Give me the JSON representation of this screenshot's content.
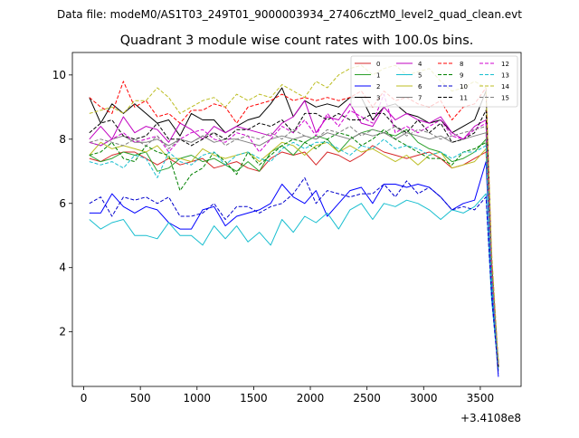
{
  "figure": {
    "suptitle": "Data file: modeM0/AS1T03_249T01_9000003934_27406cztM0_level2_quad_clean.evt"
  },
  "chart_data": {
    "type": "line",
    "title": "Quadrant 3 module wise count rates with 100.0s bins.",
    "xlabel": "",
    "ylabel": "",
    "x_offset_label": "+3.4108e8",
    "xlim": [
      -100,
      3860
    ],
    "ylim": [
      0.3,
      10.7
    ],
    "xticks": [
      0,
      500,
      1000,
      1500,
      2000,
      2500,
      3000,
      3500
    ],
    "yticks": [
      2,
      4,
      6,
      8,
      10
    ],
    "grid": false,
    "legend_position": "top-right",
    "x": [
      50,
      150,
      250,
      350,
      450,
      550,
      650,
      750,
      850,
      950,
      1050,
      1150,
      1250,
      1350,
      1450,
      1550,
      1650,
      1750,
      1850,
      1950,
      2050,
      2150,
      2250,
      2350,
      2450,
      2550,
      2650,
      2750,
      2850,
      2950,
      3050,
      3150,
      3250,
      3350,
      3450,
      3550,
      3600,
      3660
    ],
    "series": [
      {
        "name": "0",
        "color": "#d62728",
        "dash": "solid",
        "values": [
          7.4,
          7.3,
          7.5,
          7.6,
          7.6,
          7.4,
          7.2,
          7.4,
          7.2,
          7.3,
          7.4,
          7.1,
          7.2,
          7.3,
          7.1,
          7.0,
          7.4,
          7.6,
          7.5,
          7.6,
          7.2,
          7.6,
          7.5,
          7.3,
          7.5,
          7.8,
          7.6,
          7.5,
          7.4,
          7.5,
          7.6,
          7.4,
          7.1,
          7.2,
          7.4,
          7.6,
          3.5,
          1.0
        ]
      },
      {
        "name": "1",
        "color": "#2ca02c",
        "dash": "solid",
        "values": [
          7.5,
          7.3,
          7.4,
          7.6,
          7.5,
          7.6,
          7.0,
          7.1,
          7.4,
          7.5,
          7.3,
          7.4,
          7.2,
          7.0,
          7.3,
          7.0,
          7.6,
          7.8,
          7.5,
          7.9,
          8.1,
          8.0,
          7.6,
          8.0,
          8.2,
          8.3,
          8.2,
          8.1,
          8.3,
          7.9,
          7.7,
          7.6,
          7.3,
          7.4,
          7.6,
          8.0,
          3.6,
          1.1
        ]
      },
      {
        "name": "2",
        "color": "#0000ff",
        "dash": "solid",
        "values": [
          5.7,
          5.7,
          6.3,
          5.9,
          5.7,
          5.9,
          5.8,
          5.4,
          5.2,
          5.2,
          5.8,
          5.9,
          5.3,
          5.6,
          5.7,
          5.8,
          6.0,
          6.6,
          6.2,
          6.0,
          6.4,
          5.6,
          6.0,
          6.4,
          6.5,
          6.0,
          6.6,
          6.6,
          6.5,
          6.6,
          6.5,
          6.2,
          5.8,
          6.0,
          6.1,
          7.3,
          3.4,
          0.6
        ]
      },
      {
        "name": "3",
        "color": "#000000",
        "dash": "solid",
        "values": [
          9.3,
          8.5,
          9.1,
          8.8,
          9.1,
          8.8,
          8.5,
          8.6,
          8.1,
          8.8,
          8.6,
          8.6,
          8.2,
          8.4,
          8.6,
          8.7,
          9.1,
          9.6,
          8.7,
          9.2,
          9.0,
          9.1,
          9.0,
          9.3,
          9.3,
          8.6,
          9.0,
          9.1,
          8.8,
          8.7,
          8.5,
          8.6,
          8.2,
          8.4,
          8.6,
          9.5,
          4.2,
          0.9
        ]
      },
      {
        "name": "4",
        "color": "#c000c0",
        "dash": "solid",
        "values": [
          8.0,
          8.4,
          8.0,
          8.7,
          8.2,
          8.4,
          8.3,
          7.9,
          8.5,
          8.3,
          8.0,
          8.4,
          8.2,
          8.4,
          8.3,
          8.2,
          8.1,
          8.5,
          8.7,
          9.2,
          8.2,
          8.7,
          8.6,
          9.1,
          8.5,
          8.4,
          9.0,
          8.6,
          8.8,
          8.6,
          8.5,
          8.7,
          8.2,
          8.0,
          8.4,
          8.6,
          3.9,
          1.0
        ]
      },
      {
        "name": "5",
        "color": "#17becf",
        "dash": "solid",
        "values": [
          5.5,
          5.2,
          5.4,
          5.5,
          5.0,
          5.0,
          4.9,
          5.4,
          5.0,
          5.0,
          4.7,
          5.3,
          4.9,
          5.3,
          4.8,
          5.1,
          4.7,
          5.5,
          5.1,
          5.6,
          5.4,
          5.7,
          5.2,
          5.8,
          6.0,
          5.5,
          6.0,
          5.9,
          6.1,
          6.0,
          5.8,
          5.5,
          5.8,
          5.7,
          5.9,
          6.3,
          3.0,
          0.8
        ]
      },
      {
        "name": "6",
        "color": "#bcbd22",
        "dash": "solid",
        "values": [
          7.5,
          7.9,
          7.7,
          7.8,
          7.7,
          7.6,
          7.8,
          7.4,
          7.4,
          7.3,
          7.7,
          7.5,
          7.4,
          7.5,
          7.6,
          7.3,
          7.6,
          7.9,
          7.8,
          7.5,
          7.8,
          7.9,
          7.6,
          7.8,
          7.6,
          7.7,
          7.5,
          7.3,
          7.5,
          7.2,
          7.5,
          7.6,
          7.1,
          7.2,
          7.3,
          7.7,
          3.7,
          1.0
        ]
      },
      {
        "name": "7",
        "color": "#7f7f7f",
        "dash": "solid",
        "values": [
          7.9,
          7.8,
          8.0,
          8.1,
          7.9,
          7.9,
          8.0,
          7.8,
          8.0,
          7.9,
          8.1,
          7.9,
          8.0,
          8.0,
          7.9,
          7.8,
          8.0,
          8.1,
          8.0,
          8.1,
          8.0,
          8.2,
          8.1,
          8.0,
          8.2,
          8.1,
          8.2,
          8.0,
          8.2,
          8.1,
          8.0,
          8.1,
          7.9,
          8.0,
          8.1,
          8.2,
          3.9,
          1.0
        ]
      },
      {
        "name": "8",
        "color": "#ff0000",
        "dash": "dashed",
        "values": [
          9.3,
          9.0,
          8.8,
          9.8,
          9.0,
          9.2,
          8.7,
          8.8,
          8.5,
          8.9,
          8.9,
          9.1,
          9.0,
          8.5,
          9.0,
          9.1,
          9.2,
          9.4,
          9.2,
          9.3,
          9.2,
          9.3,
          9.2,
          9.3,
          9.5,
          9.0,
          9.5,
          9.2,
          9.3,
          9.1,
          9.0,
          9.2,
          8.6,
          9.0,
          9.1,
          9.6,
          4.3,
          1.0
        ]
      },
      {
        "name": "9",
        "color": "#008000",
        "dash": "dashed",
        "values": [
          7.5,
          7.6,
          7.9,
          7.4,
          7.3,
          7.8,
          7.6,
          7.5,
          6.4,
          6.9,
          7.1,
          7.6,
          7.3,
          6.9,
          7.6,
          7.2,
          7.5,
          7.8,
          8.0,
          7.9,
          7.7,
          8.0,
          8.2,
          8.1,
          7.8,
          8.0,
          8.3,
          8.0,
          7.8,
          7.6,
          7.4,
          7.4,
          7.2,
          7.6,
          7.7,
          7.9,
          3.8,
          1.0
        ]
      },
      {
        "name": "10",
        "color": "#0000cd",
        "dash": "dashed",
        "values": [
          6.0,
          6.2,
          5.6,
          6.2,
          6.1,
          6.2,
          6.0,
          6.2,
          5.6,
          5.6,
          5.7,
          6.0,
          5.5,
          5.9,
          5.9,
          5.7,
          5.9,
          6.0,
          6.3,
          6.8,
          6.0,
          6.4,
          6.3,
          6.2,
          6.3,
          6.3,
          6.6,
          6.2,
          6.7,
          6.3,
          6.5,
          6.2,
          5.8,
          5.9,
          5.8,
          6.2,
          3.1,
          0.7
        ]
      },
      {
        "name": "11",
        "color": "#000000",
        "dash": "dashed",
        "values": [
          8.2,
          8.5,
          8.6,
          8.1,
          8.0,
          8.1,
          8.5,
          8.0,
          8.0,
          7.8,
          8.0,
          8.2,
          8.0,
          8.3,
          8.3,
          8.5,
          8.4,
          8.6,
          8.2,
          8.8,
          8.8,
          8.6,
          8.8,
          8.6,
          8.6,
          8.8,
          8.8,
          8.4,
          8.2,
          8.6,
          8.2,
          8.5,
          7.9,
          8.0,
          8.2,
          8.9,
          4.0,
          0.9
        ]
      },
      {
        "name": "12",
        "color": "#d000d0",
        "dash": "dashed",
        "values": [
          7.9,
          7.8,
          8.0,
          8.2,
          7.9,
          8.0,
          8.1,
          7.6,
          8.0,
          8.2,
          8.3,
          8.0,
          7.9,
          8.2,
          8.1,
          7.6,
          8.0,
          8.4,
          8.2,
          8.6,
          8.1,
          8.8,
          8.4,
          8.9,
          8.7,
          8.5,
          9.4,
          8.2,
          8.4,
          8.2,
          8.4,
          8.6,
          8.1,
          8.0,
          8.3,
          8.5,
          3.9,
          1.0
        ]
      },
      {
        "name": "13",
        "color": "#17becf",
        "dash": "dashed",
        "values": [
          7.3,
          7.2,
          7.3,
          7.1,
          7.5,
          7.4,
          6.8,
          7.6,
          7.3,
          7.2,
          7.5,
          7.6,
          7.2,
          7.5,
          7.6,
          7.4,
          7.3,
          7.7,
          7.9,
          7.7,
          7.9,
          7.9,
          7.7,
          7.5,
          7.8,
          7.7,
          8.0,
          7.7,
          7.8,
          7.7,
          7.5,
          7.6,
          7.4,
          7.6,
          7.6,
          7.8,
          3.6,
          1.0
        ]
      },
      {
        "name": "14",
        "color": "#bcbd22",
        "dash": "dashed",
        "values": [
          8.8,
          8.9,
          9.0,
          8.8,
          9.2,
          9.2,
          9.6,
          9.3,
          8.8,
          9.0,
          9.2,
          9.3,
          9.0,
          9.4,
          9.2,
          9.4,
          9.3,
          9.7,
          9.5,
          9.3,
          9.8,
          9.6,
          10.0,
          10.2,
          10.3,
          10.0,
          10.2,
          10.3,
          10.0,
          10.1,
          10.2,
          9.8,
          9.5,
          9.6,
          9.8,
          9.6,
          4.5,
          1.0
        ]
      },
      {
        "name": "15",
        "color": "#808080",
        "dash": "dashed",
        "values": [
          7.9,
          8.0,
          7.9,
          7.8,
          8.0,
          7.8,
          8.1,
          7.7,
          8.0,
          7.9,
          8.1,
          8.2,
          7.8,
          8.0,
          8.1,
          8.0,
          8.2,
          8.0,
          8.3,
          8.1,
          8.0,
          8.3,
          8.2,
          8.4,
          8.1,
          8.3,
          8.2,
          8.4,
          8.1,
          8.3,
          8.2,
          8.0,
          8.1,
          8.2,
          8.3,
          8.4,
          4.0,
          1.0
        ]
      }
    ]
  }
}
